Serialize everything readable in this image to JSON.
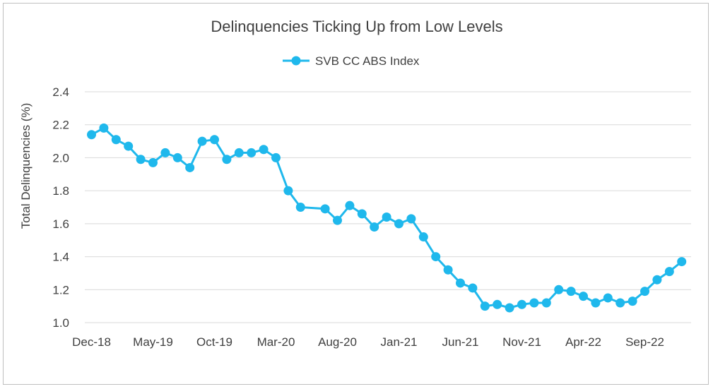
{
  "chart_data": {
    "type": "line",
    "title": "Delinquencies Ticking Up from Low Levels",
    "xlabel": "",
    "ylabel": "Total Delinquencies (%)",
    "ylim": [
      1.0,
      2.4
    ],
    "yticks": [
      "1.0",
      "1.2",
      "1.4",
      "1.6",
      "1.8",
      "2.0",
      "2.2",
      "2.4"
    ],
    "grid": true,
    "legend_position": "top-center",
    "x_tick_labels": [
      "Dec-18",
      "May-19",
      "Oct-19",
      "Mar-20",
      "Aug-20",
      "Jan-21",
      "Jun-21",
      "Nov-21",
      "Apr-22",
      "Sep-22"
    ],
    "x": [
      "Dec-18",
      "Jan-19",
      "Feb-19",
      "Mar-19",
      "Apr-19",
      "May-19",
      "Jun-19",
      "Jul-19",
      "Aug-19",
      "Sep-19",
      "Oct-19",
      "Nov-19",
      "Dec-19",
      "Jan-20",
      "Feb-20",
      "Mar-20",
      "Apr-20",
      "May-20",
      "Jun-20",
      "Jul-20",
      "Aug-20",
      "Sep-20",
      "Oct-20",
      "Nov-20",
      "Dec-20",
      "Jan-21",
      "Feb-21",
      "Mar-21",
      "Apr-21",
      "May-21",
      "Jun-21",
      "Jul-21",
      "Aug-21",
      "Sep-21",
      "Oct-21",
      "Nov-21",
      "Dec-21",
      "Jan-22",
      "Feb-22",
      "Mar-22",
      "Apr-22",
      "May-22",
      "Jun-22",
      "Jul-22",
      "Aug-22",
      "Sep-22",
      "Oct-22",
      "Nov-22",
      "Dec-22",
      "Jan-23"
    ],
    "series": [
      {
        "name": "SVB CC ABS Index",
        "color": "#1fb8ec",
        "values": [
          2.14,
          2.18,
          2.11,
          2.07,
          1.99,
          1.97,
          2.03,
          2.0,
          1.94,
          2.1,
          2.11,
          1.99,
          2.03,
          2.03,
          2.05,
          2.0,
          1.8,
          1.7,
          null,
          1.69,
          1.62,
          1.71,
          1.66,
          1.58,
          1.64,
          1.6,
          1.63,
          1.52,
          1.4,
          1.32,
          1.24,
          1.21,
          1.1,
          1.11,
          1.09,
          1.11,
          1.12,
          1.12,
          1.2,
          1.19,
          1.16,
          1.12,
          1.15,
          1.12,
          1.13,
          1.19,
          1.26,
          1.31,
          1.37,
          null
        ]
      }
    ]
  }
}
